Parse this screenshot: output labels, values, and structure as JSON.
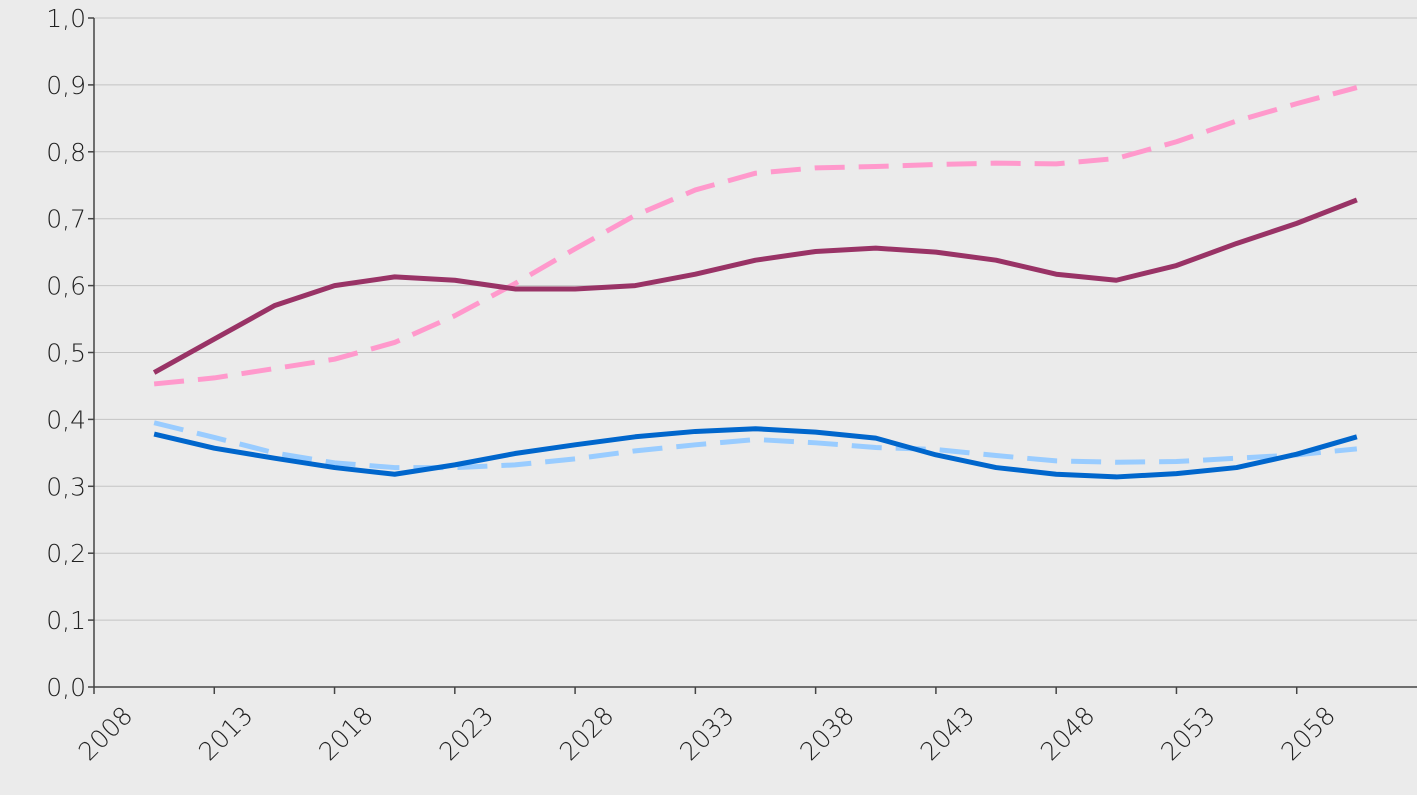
{
  "chart_data": {
    "type": "line",
    "x": [
      2010.5,
      2013,
      2015.5,
      2018,
      2020.5,
      2023,
      2025.5,
      2028,
      2030.5,
      2033,
      2035.5,
      2038,
      2040.5,
      2043,
      2045.5,
      2048,
      2050.5,
      2053,
      2055.5,
      2058,
      2060.5
    ],
    "series": [
      {
        "color": "#ff99cc",
        "style": "dashed",
        "values": [
          0.453,
          0.462,
          0.476,
          0.49,
          0.515,
          0.555,
          0.603,
          0.655,
          0.705,
          0.743,
          0.768,
          0.776,
          0.778,
          0.781,
          0.783,
          0.782,
          0.79,
          0.815,
          0.846,
          0.872,
          0.896
        ]
      },
      {
        "color": "#993366",
        "style": "solid",
        "values": [
          0.47,
          0.52,
          0.57,
          0.6,
          0.613,
          0.608,
          0.595,
          0.595,
          0.6,
          0.617,
          0.638,
          0.651,
          0.656,
          0.65,
          0.638,
          0.617,
          0.608,
          0.63,
          0.663,
          0.693,
          0.728
        ]
      },
      {
        "color": "#99ccff",
        "style": "dashed",
        "values": [
          0.395,
          0.373,
          0.35,
          0.335,
          0.328,
          0.328,
          0.332,
          0.341,
          0.353,
          0.362,
          0.37,
          0.365,
          0.358,
          0.355,
          0.346,
          0.338,
          0.336,
          0.337,
          0.342,
          0.347,
          0.356
        ]
      },
      {
        "color": "#0066cc",
        "style": "solid",
        "values": [
          0.378,
          0.357,
          0.342,
          0.328,
          0.318,
          0.332,
          0.349,
          0.362,
          0.374,
          0.382,
          0.386,
          0.381,
          0.372,
          0.347,
          0.328,
          0.318,
          0.314,
          0.319,
          0.328,
          0.348,
          0.374
        ]
      }
    ],
    "xlim": [
      2008,
      2063
    ],
    "xticks": [
      2008,
      2013,
      2018,
      2023,
      2028,
      2033,
      2038,
      2043,
      2048,
      2053,
      2058
    ],
    "ylim": [
      0,
      1
    ],
    "yticks": [
      {
        "value": 0,
        "label": "0,0"
      },
      {
        "value": 0.1,
        "label": "0,1"
      },
      {
        "value": 0.2,
        "label": "0,2"
      },
      {
        "value": 0.3,
        "label": "0,3"
      },
      {
        "value": 0.4,
        "label": "0,4"
      },
      {
        "value": 0.5,
        "label": "0,5"
      },
      {
        "value": 0.6,
        "label": "0,6"
      },
      {
        "value": 0.7,
        "label": "0,7"
      },
      {
        "value": 0.8,
        "label": "0,8"
      },
      {
        "value": 0.9,
        "label": "0,9"
      },
      {
        "value": 1,
        "label": "1,0"
      }
    ],
    "grid": true
  }
}
